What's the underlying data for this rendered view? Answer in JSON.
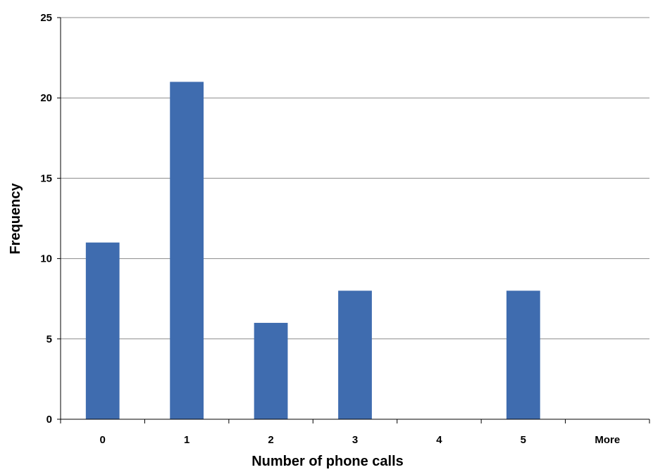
{
  "chart_data": {
    "type": "bar",
    "categories": [
      "0",
      "1",
      "2",
      "3",
      "4",
      "5",
      "More"
    ],
    "values": [
      11,
      21,
      6,
      8,
      0,
      8,
      0
    ],
    "title": "",
    "xlabel": "Number of phone calls",
    "ylabel": "Frequency",
    "ylim": [
      0,
      25
    ],
    "yticks": [
      0,
      5,
      10,
      15,
      20,
      25
    ],
    "grid": "horizontal",
    "legend": "none",
    "bar_color": "#3F6CAF"
  }
}
